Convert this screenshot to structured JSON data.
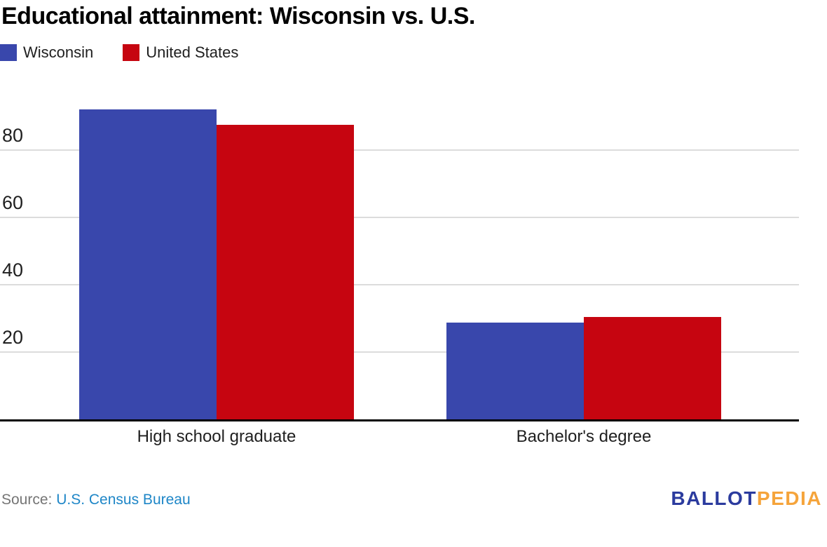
{
  "title": "Educational attainment: Wisconsin vs. U.S.",
  "legend": [
    {
      "label": "Wisconsin",
      "color": "#3947AC"
    },
    {
      "label": "United States",
      "color": "#C60510"
    }
  ],
  "chart_data": {
    "type": "bar",
    "title": "Educational attainment: Wisconsin vs. U.S.",
    "categories": [
      "High school graduate",
      "Bachelor's degree"
    ],
    "series": [
      {
        "name": "Wisconsin",
        "color": "#3947AC",
        "values": [
          92.1,
          28.8
        ]
      },
      {
        "name": "United States",
        "color": "#C60510",
        "values": [
          87.6,
          30.5
        ]
      }
    ],
    "unit": "percent",
    "xlabel": "",
    "ylabel": "",
    "ylim": [
      0,
      100
    ],
    "yticks": [
      20,
      40,
      60,
      80
    ],
    "grid": true,
    "legend_position": "top-left"
  },
  "footer": {
    "source_label": "Source:",
    "source_link": "U.S. Census Bureau",
    "logo": {
      "part1": "BALLOT",
      "part2": "PEDIA",
      "color1": "#2B3B9E",
      "color2": "#F5A43B"
    }
  },
  "colors": {
    "grid": "#DCDCDC",
    "axis": "#000000",
    "source_label": "#757575",
    "source_link": "#1E86C7"
  }
}
